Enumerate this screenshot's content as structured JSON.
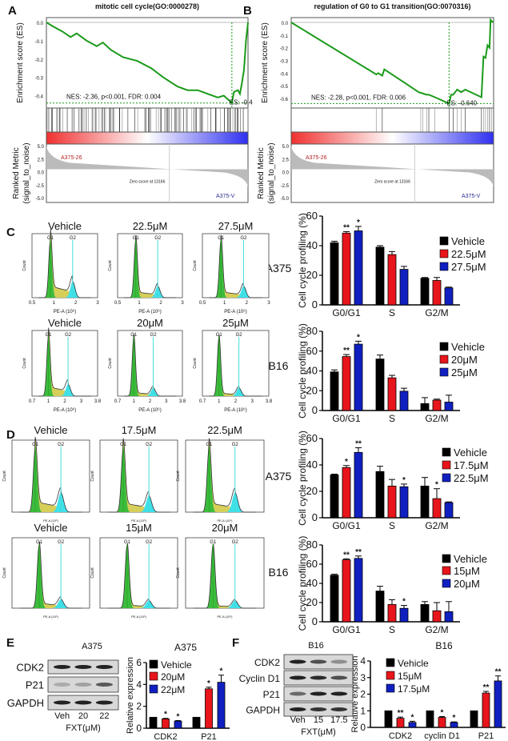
{
  "panel_labels": [
    "A",
    "B",
    "C",
    "D",
    "E",
    "F"
  ],
  "colors": {
    "vehicle": "#000000",
    "mid": "#e8151b",
    "high": "#1020c0",
    "es_curve": "#1a9a1a",
    "g1_fill": "#3dbb3d",
    "s_fill": "#d6cf5a",
    "g2_fill": "#3fe0e8"
  },
  "gsea": [
    {
      "title": "mitotic cell cycle(GO:0000278)",
      "ylabel": "Enrichment score (ES)",
      "yticks": [
        "0.0",
        "-0.1",
        "-0.2",
        "-0.3",
        "-0.4"
      ],
      "ylim": [
        -0.45,
        0.02
      ],
      "stats": "NES: -2.36, p<0.001, FDR: 0.004",
      "es_label": "ES: -0.4",
      "es_curve": {
        "rank_pct": [
          0,
          3,
          8,
          12,
          15,
          20,
          25,
          28,
          32,
          38,
          45,
          52,
          58,
          65,
          70,
          75,
          80,
          85,
          88,
          90,
          92,
          93,
          95,
          96,
          97,
          98,
          99,
          100
        ],
        "es": [
          0,
          -0.02,
          -0.05,
          -0.08,
          -0.06,
          -0.1,
          -0.13,
          -0.11,
          -0.15,
          -0.19,
          -0.21,
          -0.25,
          -0.3,
          -0.35,
          -0.37,
          -0.37,
          -0.39,
          -0.41,
          -0.4,
          -0.42,
          -0.44,
          -0.38,
          -0.37,
          -0.39,
          -0.33,
          -0.26,
          -0.1,
          0.0
        ]
      },
      "metric_ylabel": [
        "Ranked Metric",
        "(signal_to_noise)"
      ],
      "metric_yticks": [
        "5.0",
        "2.5",
        "0.0",
        "-2.5",
        "-5.0"
      ],
      "pos_label": "A375-26",
      "neg_label": "A375-V",
      "zero_label": "Zero score at 13166"
    },
    {
      "title": "regulation of G0 to G1 transition(GO:0070316)",
      "ylabel": "Enrichment score (ES)",
      "yticks": [
        "0.0",
        "-0.1",
        "-0.2",
        "-0.3",
        "-0.4",
        "-0.5",
        "-0.6"
      ],
      "ylim": [
        -0.65,
        0.02
      ],
      "stats": "NES: -2.28, p<0.001, FDR: 0.006",
      "es_label": "ES: -0.640",
      "es_curve": {
        "rank_pct": [
          0,
          42,
          43,
          45,
          46,
          63,
          65,
          67,
          68,
          71,
          78,
          79,
          80,
          82,
          84,
          86,
          94,
          95,
          96,
          97,
          98,
          98.5,
          99,
          100
        ],
        "es": [
          0,
          -0.41,
          -0.4,
          -0.42,
          -0.37,
          -0.55,
          -0.56,
          -0.57,
          -0.57,
          -0.59,
          -0.64,
          -0.57,
          -0.57,
          -0.53,
          -0.55,
          -0.53,
          -0.59,
          -0.27,
          -0.28,
          -0.18,
          -0.2,
          0.02,
          0.01,
          0.0
        ]
      },
      "metric_ylabel": [
        "Ranked Metric",
        "(signal_to_noise)"
      ],
      "metric_yticks": [
        "5.0",
        "2.5",
        "0.0",
        "-2.5",
        "-5.0"
      ],
      "pos_label": "A375-26",
      "neg_label": "A375-V",
      "zero_label": "Zero score at 13166"
    }
  ],
  "histograms": {
    "count_label": "Count",
    "g1_label": "G1",
    "g2_label": "G2",
    "xlabel": "PE-A (10⁶)",
    "rows": [
      {
        "cell": "A375",
        "titles": [
          "Vehicle",
          "22.5μM",
          "27.5μM"
        ],
        "xticks": [
          "0.5",
          "1",
          "2",
          "3"
        ]
      },
      {
        "cell": "B16",
        "titles": [
          "Vehicle",
          "20μM",
          "25μM"
        ],
        "xticks": [
          "0.7",
          "1",
          "2",
          "3",
          "3.8"
        ]
      },
      {
        "cell": "A375",
        "titles": [
          "Vehicle",
          "17.5μM",
          "22.5μM"
        ],
        "xticks": [
          "",
          "",
          "",
          "",
          ""
        ]
      },
      {
        "cell": "B16",
        "titles": [
          "Vehicle",
          "15μM",
          "20μM"
        ],
        "xticks": [
          "",
          "",
          "",
          "",
          ""
        ]
      }
    ]
  },
  "chart_data": [
    {
      "type": "bar",
      "panel": "C",
      "cell": "A375",
      "ylabel": "Cell cycle profiling (%)",
      "ylim": [
        0,
        60
      ],
      "yticks": [
        0,
        20,
        40,
        60
      ],
      "categories": [
        "G0/G1",
        "S",
        "G2/M"
      ],
      "series": [
        {
          "name": "Vehicle",
          "values": [
            42,
            39,
            18
          ],
          "errors": [
            1,
            1,
            0.5
          ],
          "stars": [
            "",
            "",
            ""
          ]
        },
        {
          "name": "22.5μM",
          "values": [
            48.5,
            34,
            16.5
          ],
          "errors": [
            1,
            2,
            2
          ],
          "stars": [
            "**",
            "",
            ""
          ]
        },
        {
          "name": "27.5μM",
          "values": [
            50,
            24,
            11.5
          ],
          "errors": [
            3,
            2,
            0.5
          ],
          "stars": [
            "*",
            "",
            ""
          ]
        }
      ]
    },
    {
      "type": "bar",
      "panel": "C",
      "cell": "B16",
      "ylabel": "Cell cycle profiling (%)",
      "ylim": [
        0,
        80
      ],
      "yticks": [
        0,
        20,
        40,
        60,
        80
      ],
      "categories": [
        "G0/G1",
        "S",
        "G2/M"
      ],
      "series": [
        {
          "name": "Vehicle",
          "values": [
            39,
            52,
            7
          ],
          "errors": [
            2,
            4,
            6
          ],
          "stars": [
            "",
            "",
            ""
          ]
        },
        {
          "name": "20μM",
          "values": [
            54.5,
            33,
            10.5
          ],
          "errors": [
            2,
            2.5,
            1
          ],
          "stars": [
            "**",
            "",
            ""
          ]
        },
        {
          "name": "25μM",
          "values": [
            67,
            19.5,
            8.5
          ],
          "errors": [
            3,
            3,
            7
          ],
          "stars": [
            "*",
            "",
            ""
          ]
        }
      ]
    },
    {
      "type": "bar",
      "panel": "D",
      "cell": "A375",
      "ylabel": "Cell cycle profiling (%)",
      "ylim": [
        0,
        60
      ],
      "yticks": [
        0,
        20,
        40,
        60
      ],
      "categories": [
        "G0/G1",
        "S",
        "G2/M"
      ],
      "series": [
        {
          "name": "Vehicle",
          "values": [
            32.5,
            35,
            24
          ],
          "errors": [
            0.5,
            4,
            6.5
          ],
          "stars": [
            "",
            "",
            ""
          ]
        },
        {
          "name": "17.5μM",
          "values": [
            38,
            24,
            14.5
          ],
          "errors": [
            1.5,
            5,
            7.5
          ],
          "stars": [
            "*",
            "",
            "*"
          ]
        },
        {
          "name": "22.5μM",
          "values": [
            49.5,
            23.5,
            11.5
          ],
          "errors": [
            3.5,
            2,
            0.5
          ],
          "stars": [
            "**",
            "*",
            ""
          ]
        }
      ]
    },
    {
      "type": "bar",
      "panel": "D",
      "cell": "B16",
      "ylabel": "Cell cycle profiling (%)",
      "ylim": [
        0,
        80
      ],
      "yticks": [
        0,
        20,
        40,
        60,
        80
      ],
      "categories": [
        "G0/G1",
        "S",
        "G2/M"
      ],
      "series": [
        {
          "name": "Vehicle",
          "values": [
            48.5,
            32,
            18
          ],
          "errors": [
            1,
            5,
            3
          ],
          "stars": [
            "",
            "",
            ""
          ]
        },
        {
          "name": "15μM",
          "values": [
            64.5,
            18,
            11.5
          ],
          "errors": [
            1,
            5,
            8.5
          ],
          "stars": [
            "**",
            "",
            ""
          ]
        },
        {
          "name": "20μM",
          "values": [
            66,
            14,
            10.5
          ],
          "errors": [
            2.5,
            3,
            10.5
          ],
          "stars": [
            "**",
            "*",
            ""
          ]
        }
      ]
    },
    {
      "type": "bar",
      "panel": "E",
      "title": "A375",
      "ylabel": "Relative expression",
      "ylim": [
        0,
        6
      ],
      "yticks": [
        0,
        2,
        4,
        6
      ],
      "categories": [
        "CDK2",
        "P21"
      ],
      "series": [
        {
          "name": "Vehicle",
          "values": [
            1,
            1
          ],
          "errors": [
            0,
            0
          ],
          "stars": [
            "",
            ""
          ]
        },
        {
          "name": "20μM",
          "values": [
            0.85,
            3.6
          ],
          "errors": [
            0.05,
            0.15
          ],
          "stars": [
            "*",
            "*"
          ]
        },
        {
          "name": "22μM",
          "values": [
            0.65,
            4.2
          ],
          "errors": [
            0.05,
            0.65
          ],
          "stars": [
            "*",
            "*"
          ]
        }
      ]
    },
    {
      "type": "bar",
      "panel": "F",
      "title": "B16",
      "ylabel": "Relative expression",
      "ylim": [
        0,
        4
      ],
      "yticks": [
        0,
        1,
        2,
        3,
        4
      ],
      "categories": [
        "CDK2",
        "cyclin D1",
        "P21"
      ],
      "series": [
        {
          "name": "Vehicle",
          "values": [
            1,
            1,
            1
          ],
          "errors": [
            0,
            0,
            0
          ],
          "stars": [
            "",
            "",
            ""
          ]
        },
        {
          "name": "15μM",
          "values": [
            0.55,
            0.6,
            2.07
          ],
          "errors": [
            0.07,
            0.05,
            0.1
          ],
          "stars": [
            "**",
            "*",
            "**"
          ]
        },
        {
          "name": "17.5μM",
          "values": [
            0.3,
            0.3,
            2.8
          ],
          "errors": [
            0.07,
            0.03,
            0.3
          ],
          "stars": [
            "*",
            "*",
            "**"
          ]
        }
      ]
    }
  ],
  "blots": [
    {
      "panel": "E",
      "title": "A375",
      "proteins": [
        "CDK2",
        "P21",
        "GAPDH"
      ],
      "lanes": [
        "Veh",
        "20",
        "22"
      ],
      "xlabel": "FXT(μM)"
    },
    {
      "panel": "F",
      "title": "B16",
      "proteins": [
        "CDK2",
        "Cyclin D1",
        "P21",
        "GAPDH"
      ],
      "lanes": [
        "Veh",
        "15",
        "17.5"
      ],
      "xlabel": "FXT(μM)"
    }
  ]
}
